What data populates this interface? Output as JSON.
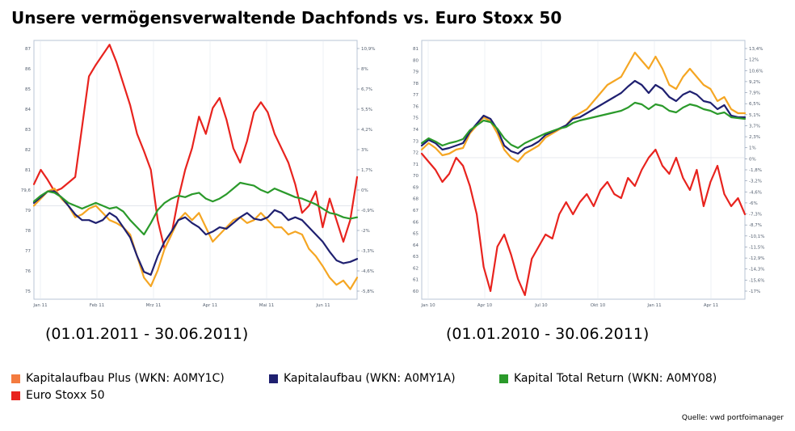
{
  "title": "Unsere vermögensverwaltende Dachfonds vs. Euro Stoxx 50",
  "colors": {
    "kapitalaufbau_plus": "#f5a623",
    "kapitalaufbau": "#1f2070",
    "kapital_total_return": "#2b9a2b",
    "euro_stoxx": "#e8231e",
    "legend_plus_swatch": "#f47b3f"
  },
  "legend": [
    {
      "label": "Kapitalaufbau Plus (WKN: A0MY1C)",
      "swatch": "#f47b3f"
    },
    {
      "label": "Kapitalaufbau (WKN: A0MY1A)",
      "swatch": "#1f2070"
    },
    {
      "label": "Kapital Total Return (WKN: A0MY08)",
      "swatch": "#2b9a2b"
    },
    {
      "label": "Euro Stoxx 50",
      "swatch": "#e8231e"
    }
  ],
  "source": "Quelle: vwd portfoimanager",
  "chart_data": [
    {
      "type": "line",
      "period_label": "(01.01.2011 - 30.06.2011)",
      "x_ticks": [
        "Jan 11",
        "Feb 11",
        "Mrz 11",
        "Apr 11",
        "Mai 11",
        "Jun 11"
      ],
      "y_left_ticks": [
        "87",
        "86",
        "85",
        "84",
        "83",
        "82",
        "81",
        "79,6",
        "79",
        "78",
        "77",
        "76",
        "75"
      ],
      "y_right_ticks": [
        "10,9%",
        "8%",
        "6,7%",
        "5,5%",
        "4,2%",
        "3%",
        "1,7%",
        "0%",
        "-0,9%",
        "-2%",
        "-3,3%",
        "-4,6%",
        "-5,8%"
      ],
      "y_range": [
        -6.5,
        11.5
      ],
      "series": [
        {
          "key": "euro_stoxx",
          "values": [
            1.5,
            2.5,
            1.8,
            1.0,
            1.2,
            1.6,
            2.0,
            5.5,
            9.0,
            9.8,
            10.5,
            11.2,
            10.0,
            8.5,
            7.0,
            5.0,
            3.8,
            2.5,
            -1.0,
            -3.0,
            -2.0,
            0.5,
            2.5,
            4.0,
            6.2,
            5.0,
            6.8,
            7.5,
            6.0,
            4.0,
            3.0,
            4.5,
            6.5,
            7.2,
            6.5,
            5.0,
            4.0,
            3.0,
            1.5,
            -0.5,
            0.0,
            1.0,
            -1.5,
            0.5,
            -1.0,
            -2.5,
            -1.0,
            2.0
          ]
        },
        {
          "key": "kapitalaufbau_plus",
          "values": [
            0.0,
            0.5,
            1.0,
            1.2,
            0.5,
            0.0,
            -0.8,
            -0.6,
            -0.2,
            0.0,
            -0.5,
            -1.0,
            -1.2,
            -1.5,
            -2.0,
            -3.5,
            -5.0,
            -5.6,
            -4.5,
            -3.0,
            -2.0,
            -1.0,
            -0.5,
            -1.0,
            -0.5,
            -1.5,
            -2.5,
            -2.0,
            -1.5,
            -1.0,
            -0.8,
            -1.2,
            -1.0,
            -0.5,
            -1.0,
            -1.5,
            -1.5,
            -2.0,
            -1.8,
            -2.0,
            -3.0,
            -3.5,
            -4.2,
            -5.0,
            -5.5,
            -5.2,
            -5.8,
            -5.0
          ]
        },
        {
          "key": "kapitalaufbau",
          "values": [
            0.2,
            0.6,
            1.0,
            1.0,
            0.6,
            0.0,
            -0.6,
            -1.0,
            -1.0,
            -1.2,
            -1.0,
            -0.5,
            -0.8,
            -1.5,
            -2.2,
            -3.5,
            -4.6,
            -4.8,
            -3.5,
            -2.5,
            -1.8,
            -1.0,
            -0.8,
            -1.2,
            -1.5,
            -2.0,
            -1.8,
            -1.5,
            -1.6,
            -1.2,
            -0.8,
            -0.5,
            -0.9,
            -1.0,
            -0.8,
            -0.3,
            -0.5,
            -1.0,
            -0.8,
            -1.0,
            -1.5,
            -2.0,
            -2.5,
            -3.2,
            -3.8,
            -4.0,
            -3.9,
            -3.7
          ]
        },
        {
          "key": "kapital_total_return",
          "values": [
            0.3,
            0.7,
            1.0,
            0.9,
            0.6,
            0.2,
            0.0,
            -0.2,
            0.0,
            0.2,
            0.0,
            -0.2,
            -0.1,
            -0.4,
            -1.0,
            -1.5,
            -2.0,
            -1.2,
            -0.3,
            0.2,
            0.5,
            0.7,
            0.6,
            0.8,
            0.9,
            0.5,
            0.3,
            0.5,
            0.8,
            1.2,
            1.6,
            1.5,
            1.4,
            1.1,
            0.9,
            1.2,
            1.0,
            0.8,
            0.6,
            0.5,
            0.3,
            0.1,
            -0.2,
            -0.5,
            -0.6,
            -0.8,
            -0.9,
            -0.8
          ]
        }
      ]
    },
    {
      "type": "line",
      "period_label": "(01.01.2010 - 30.06.2011)",
      "x_ticks": [
        "Jan 10",
        "Apr 10",
        "Jul 10",
        "Okt 10",
        "Jan 11",
        "Apr 11"
      ],
      "y_left_ticks": [
        "81",
        "80",
        "79",
        "78",
        "77",
        "76",
        "75",
        "74",
        "73",
        "72",
        "71",
        "70",
        "69",
        "68",
        "67",
        "66",
        "65",
        "64",
        "63",
        "62",
        "61",
        "60"
      ],
      "y_right_ticks": [
        "13,4%",
        "12%",
        "10,6%",
        "9,2%",
        "7,9%",
        "6,5%",
        "5,1%",
        "3,7%",
        "2,3%",
        "1%",
        "0%",
        "-1,8%",
        "-3,2%",
        "-4,6%",
        "-6%",
        "-7,3%",
        "-8,7%",
        "-10,1%",
        "-11,5%",
        "-12,9%",
        "-14,3%",
        "-15,6%",
        "-17%"
      ],
      "y_range": [
        -17.5,
        14.5
      ],
      "series": [
        {
          "key": "euro_stoxx",
          "values": [
            0.5,
            -0.5,
            -1.5,
            -3.0,
            -2.0,
            0.0,
            -1.0,
            -3.5,
            -7.0,
            -13.5,
            -16.5,
            -11.0,
            -9.5,
            -12.0,
            -15.0,
            -17.0,
            -12.5,
            -11.0,
            -9.5,
            -10.0,
            -7.0,
            -5.5,
            -7.0,
            -5.5,
            -4.5,
            -6.0,
            -4.0,
            -3.0,
            -4.5,
            -5.0,
            -2.5,
            -3.5,
            -1.5,
            0.0,
            1.0,
            -1.0,
            -2.0,
            0.0,
            -2.5,
            -4.0,
            -1.5,
            -6.0,
            -3.0,
            -1.0,
            -4.5,
            -6.0,
            -5.0,
            -7.0
          ]
        },
        {
          "key": "kapitalaufbau_plus",
          "values": [
            1.0,
            1.8,
            1.2,
            0.3,
            0.5,
            1.0,
            1.2,
            3.0,
            4.0,
            5.0,
            4.5,
            3.0,
            1.0,
            0.0,
            -0.5,
            0.5,
            1.0,
            1.5,
            2.5,
            3.0,
            3.5,
            4.0,
            5.0,
            5.5,
            6.0,
            7.0,
            8.0,
            9.0,
            9.5,
            10.0,
            11.5,
            13.0,
            12.0,
            11.0,
            12.5,
            11.0,
            9.0,
            8.5,
            10.0,
            11.0,
            10.0,
            9.0,
            8.5,
            7.0,
            7.5,
            6.0,
            5.5,
            5.5
          ]
        },
        {
          "key": "kapitalaufbau",
          "values": [
            1.5,
            2.2,
            1.8,
            1.0,
            1.2,
            1.5,
            1.8,
            3.2,
            4.2,
            5.2,
            4.8,
            3.5,
            1.5,
            0.8,
            0.5,
            1.2,
            1.5,
            2.0,
            2.8,
            3.2,
            3.6,
            4.0,
            4.8,
            5.0,
            5.5,
            6.0,
            6.5,
            7.0,
            7.5,
            8.0,
            8.8,
            9.5,
            9.0,
            8.0,
            9.0,
            8.5,
            7.5,
            7.0,
            7.8,
            8.2,
            7.8,
            7.0,
            6.8,
            6.0,
            6.5,
            5.2,
            5.0,
            5.0
          ]
        },
        {
          "key": "kapital_total_return",
          "values": [
            1.8,
            2.4,
            2.0,
            1.5,
            1.8,
            2.0,
            2.3,
            3.4,
            4.0,
            4.6,
            4.4,
            3.6,
            2.4,
            1.6,
            1.2,
            1.8,
            2.2,
            2.6,
            3.0,
            3.3,
            3.6,
            3.8,
            4.3,
            4.6,
            4.8,
            5.0,
            5.2,
            5.4,
            5.6,
            5.8,
            6.2,
            6.8,
            6.6,
            6.0,
            6.6,
            6.4,
            5.8,
            5.6,
            6.2,
            6.6,
            6.4,
            6.0,
            5.8,
            5.4,
            5.6,
            5.0,
            4.9,
            4.8
          ]
        }
      ]
    }
  ]
}
